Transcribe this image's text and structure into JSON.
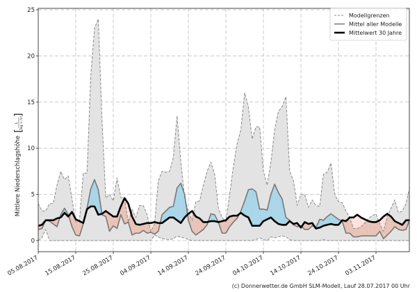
{
  "chart_data": {
    "type": "area",
    "ylabel": "Mittlere Niederschlagshöhe",
    "ylabel_unit_num": "L",
    "ylabel_unit_den": "Tag × m²",
    "ylim": [
      -1.2,
      25.2
    ],
    "yticks": [
      "0",
      "5",
      "10",
      "15",
      "20",
      "25"
    ],
    "x_start": "05.08.2017",
    "x_days": 100,
    "xticks": [
      "05.08.2017",
      "15.08.2017",
      "25.08.2017",
      "04.09.2017",
      "14.09.2017",
      "24.09.2017",
      "04.10.2017",
      "14.10.2017",
      "24.10.2017",
      "03.11.2017"
    ],
    "grid": true,
    "legend_position": "top-right",
    "legend": [
      "Modellgrenzen",
      "Mittel aller Modelle",
      "Mittelwert 30 Jahre"
    ],
    "series": [
      {
        "name": "Modellgrenzen (oben)",
        "values": [
          4.0,
          3.2,
          3.2,
          4.0,
          4.0,
          6.0,
          7.5,
          6.6,
          7.0,
          4.5,
          2.0,
          2.2,
          7.3,
          7.3,
          17.8,
          23.0,
          24.0,
          13.0,
          4.6,
          5.0,
          4.3,
          6.8,
          4.7,
          4.5,
          2.0,
          3.4,
          2.5,
          3.8,
          3.8,
          2.8,
          1.0,
          1.8,
          6.5,
          7.5,
          7.4,
          7.5,
          9.0,
          13.5,
          8.5,
          4.7,
          3.1,
          2.2,
          4.2,
          4.3,
          6.0,
          7.5,
          8.5,
          7.2,
          3.5,
          2.5,
          2.0,
          5.0,
          8.0,
          10.5,
          12.0,
          16.0,
          14.5,
          11.0,
          12.3,
          12.3,
          7.5,
          6.0,
          8.5,
          12.0,
          14.0,
          14.5,
          15.6,
          7.5,
          6.5,
          3.8,
          5.0,
          5.0,
          3.6,
          4.4,
          3.8,
          3.7,
          7.2,
          7.4,
          8.4,
          5.0,
          4.2,
          4.1,
          3.2,
          2.5,
          1.3,
          1.3,
          1.5,
          1.9,
          2.4,
          2.7,
          2.9,
          1.8,
          1.0,
          2.6,
          3.5,
          4.4,
          3.0,
          3.2,
          4.0,
          5.8
        ]
      },
      {
        "name": "Modellgrenzen (unten)",
        "values": [
          0,
          0.3,
          1.2,
          0,
          0,
          0,
          0,
          0,
          0,
          0,
          0,
          0,
          0,
          0,
          0,
          0,
          0,
          0,
          0,
          0,
          0,
          0,
          0,
          0,
          0,
          0,
          0,
          0,
          0,
          0,
          0,
          0.6,
          0.4,
          0.2,
          0.15,
          0.1,
          0.2,
          0.5,
          0.35,
          0.3,
          0.1,
          0,
          0,
          0,
          0,
          0,
          0,
          0,
          0,
          0,
          0,
          0,
          0,
          0,
          0,
          0,
          0,
          0,
          0.1,
          0.3,
          0.1,
          0,
          0.4,
          0.3,
          0.4,
          0.5,
          0.4,
          0.1,
          0,
          0,
          0,
          0,
          0,
          0,
          0,
          0,
          0.1,
          0,
          0,
          0,
          0,
          0,
          0,
          0,
          0,
          0,
          0,
          0,
          0,
          0,
          0,
          0,
          0,
          0,
          0,
          0,
          0,
          0,
          0,
          0
        ]
      },
      {
        "name": "Mittel aller Modelle",
        "values": [
          1.2,
          1.3,
          2.2,
          2.1,
          1.8,
          1.5,
          2.8,
          3.5,
          2.8,
          1.5,
          0.6,
          0.5,
          1.8,
          3.5,
          5.6,
          6.6,
          5.5,
          2.8,
          2.6,
          1.0,
          1.6,
          1.3,
          2.8,
          1.8,
          2.0,
          0.6,
          0.8,
          0.8,
          1.1,
          0.8,
          0.9,
          0.7,
          1.0,
          2.8,
          3.2,
          3.6,
          3.7,
          5.7,
          6.2,
          5.0,
          2.2,
          1.0,
          0.6,
          0.9,
          1.2,
          1.7,
          2.9,
          2.8,
          2.0,
          0.8,
          0.8,
          1.5,
          2.0,
          2.4,
          3.2,
          4.3,
          5.5,
          5.6,
          5.3,
          3.4,
          3.4,
          3.3,
          5.0,
          6.1,
          5.2,
          4.5,
          2.5,
          2.2,
          1.7,
          1.5,
          1.6,
          1.2,
          1.2,
          1.6,
          1.4,
          2.3,
          2.2,
          2.6,
          2.9,
          2.6,
          2.3,
          2.1,
          0.8,
          0.8,
          0.4,
          0.4,
          0.5,
          0.5,
          0.5,
          0.5,
          0.5,
          1.0,
          0.2,
          0.6,
          1.0,
          1.5,
          1.2,
          1.1,
          1.2,
          2.3
        ]
      },
      {
        "name": "Mittelwert 30 Jahre",
        "values": [
          1.6,
          1.7,
          2.2,
          2.2,
          2.2,
          2.4,
          2.5,
          3.0,
          2.6,
          3.1,
          2.3,
          2.1,
          1.9,
          3.4,
          3.7,
          3.7,
          2.8,
          2.9,
          3.2,
          2.9,
          2.6,
          2.6,
          3.7,
          4.6,
          4.0,
          2.6,
          1.8,
          1.7,
          1.8,
          1.9,
          1.9,
          2.0,
          1.9,
          1.9,
          2.2,
          2.5,
          2.5,
          2.2,
          1.9,
          2.5,
          2.9,
          3.2,
          2.6,
          2.4,
          2.0,
          2.0,
          2.1,
          2.1,
          2.0,
          2.1,
          2.2,
          2.6,
          2.7,
          2.7,
          3.0,
          2.7,
          2.5,
          1.6,
          1.6,
          1.6,
          2.1,
          2.3,
          2.5,
          2.1,
          1.8,
          1.7,
          1.7,
          2.1,
          1.8,
          1.9,
          1.4,
          2.0,
          1.8,
          1.9,
          1.3,
          1.4,
          1.6,
          1.7,
          1.8,
          1.7,
          1.7,
          2.2,
          2.1,
          2.5,
          2.5,
          2.8,
          2.5,
          2.3,
          2.1,
          2.0,
          2.0,
          2.2,
          2.6,
          2.9,
          2.6,
          2.1,
          1.9,
          1.7,
          2.2,
          2.2
        ]
      }
    ],
    "colors": {
      "range_fill": "#e3e3e3",
      "above": "#a9d6e8",
      "below": "#e9c3b7",
      "below_range": "#fde2dd",
      "range_line": "#8a8a8a",
      "mean_line": "#777777",
      "climate_line": "#000000"
    }
  },
  "footer": "(c) Donnerwetter.de GmbH SLM-Modell, Lauf 28.07.2017 00 Uhr"
}
